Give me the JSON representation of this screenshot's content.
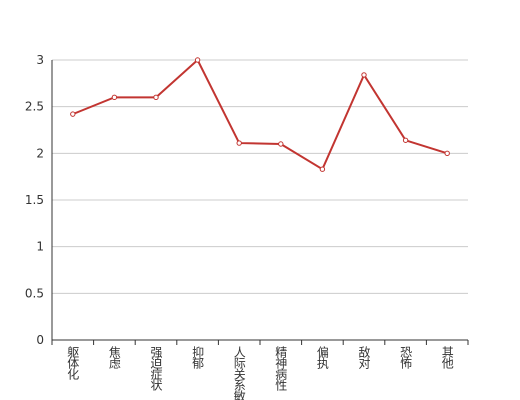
{
  "chart_data": {
    "type": "line",
    "categories": [
      "躯体化",
      "焦虑",
      "强迫症状",
      "抑郁",
      "人际关系敏感",
      "精神病性",
      "偏执",
      "敌对",
      "恐怖",
      "其他"
    ],
    "values": [
      2.42,
      2.6,
      2.6,
      3.0,
      2.11,
      2.1,
      1.83,
      2.84,
      2.14,
      2.0
    ],
    "color": "#c23531",
    "ylim": [
      0,
      3
    ],
    "yticks": [
      0,
      0.5,
      1,
      1.5,
      2,
      2.5,
      3
    ],
    "grid": true
  }
}
